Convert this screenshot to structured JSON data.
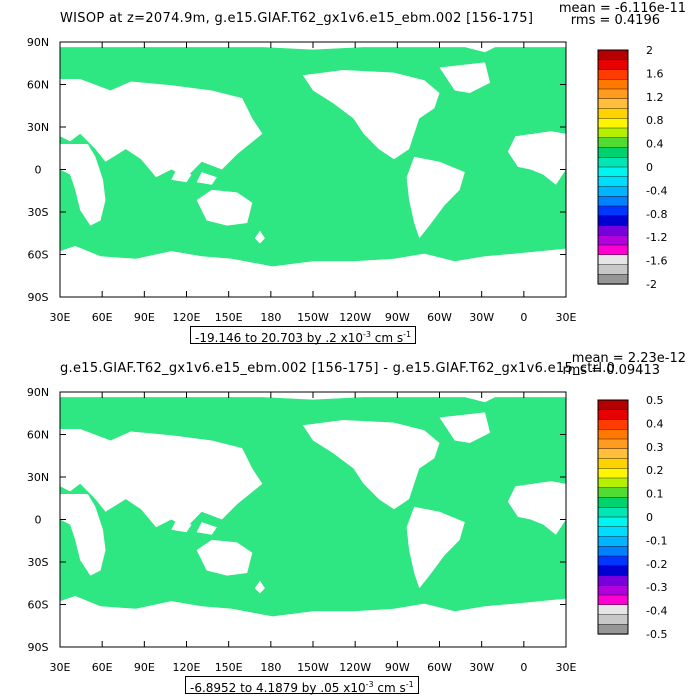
{
  "chart_data": [
    {
      "type": "heatmap",
      "title": "WISOP at z=2074.9m, g.e15.GIAF.T62_gx1v6.e15_ebm.002 [156-175]",
      "mean_text": "mean = -6.116e-11",
      "rms_text": "rms = 0.4196",
      "range_text": "-19.146 to 20.703 by .2 x10",
      "range_exp": "-3",
      "range_units": " cm s",
      "range_units_exp": "-1",
      "xticks": [
        "30E",
        "60E",
        "90E",
        "120E",
        "150E",
        "180",
        "150W",
        "120W",
        "90W",
        "60W",
        "30W",
        "0",
        "30E"
      ],
      "yticks": [
        "90N",
        "60N",
        "30N",
        "0",
        "30S",
        "60S",
        "90S"
      ],
      "colorbar_labels": [
        "2",
        "1.6",
        "1.2",
        "0.8",
        "0.4",
        "0",
        "-0.4",
        "-0.8",
        "-1.2",
        "-1.6",
        "-2"
      ],
      "colorbar_colors": [
        "#b40000",
        "#e60000",
        "#ff3c00",
        "#ff7800",
        "#ff9b1e",
        "#ffbe3c",
        "#ffd200",
        "#fff500",
        "#b4f000",
        "#50dc32",
        "#00d26e",
        "#00e6b4",
        "#00f5f0",
        "#00dcff",
        "#00b4ff",
        "#0082ff",
        "#0037ff",
        "#0000d2",
        "#7800dc",
        "#b400dc",
        "#ff00d2",
        "#e6e6e6",
        "#c8c8c8",
        "#969696"
      ],
      "ocean_color": "#2ee682",
      "land_color": "#ffffff"
    },
    {
      "type": "heatmap",
      "title": "g.e15.GIAF.T62_gx1v6.e15_ebm.002 [156-175] - g.e15.GIAF.T62_gx1v6.e15_ctrl.0",
      "mean_text": "mean = 2.23e-12",
      "rms_text": "rms = 0.09413",
      "range_text": "-6.8952 to 4.1879 by .05 x10",
      "range_exp": "-3",
      "range_units": " cm s",
      "range_units_exp": "-1",
      "xticks": [
        "30E",
        "60E",
        "90E",
        "120E",
        "150E",
        "180",
        "150W",
        "120W",
        "90W",
        "60W",
        "30W",
        "0",
        "30E"
      ],
      "yticks": [
        "90N",
        "60N",
        "30N",
        "0",
        "30S",
        "60S",
        "90S"
      ],
      "colorbar_labels": [
        "0.5",
        "0.4",
        "0.3",
        "0.2",
        "0.1",
        "0",
        "-0.1",
        "-0.2",
        "-0.3",
        "-0.4",
        "-0.5"
      ],
      "colorbar_colors": [
        "#b40000",
        "#e60000",
        "#ff3c00",
        "#ff7800",
        "#ff9b1e",
        "#ffbe3c",
        "#ffd200",
        "#fff500",
        "#b4f000",
        "#50dc32",
        "#00d26e",
        "#00e6b4",
        "#00f5f0",
        "#00dcff",
        "#00b4ff",
        "#0082ff",
        "#0037ff",
        "#0000d2",
        "#7800dc",
        "#b400dc",
        "#ff00d2",
        "#e6e6e6",
        "#c8c8c8",
        "#969696"
      ],
      "ocean_color": "#2ee682",
      "land_color": "#ffffff"
    }
  ]
}
